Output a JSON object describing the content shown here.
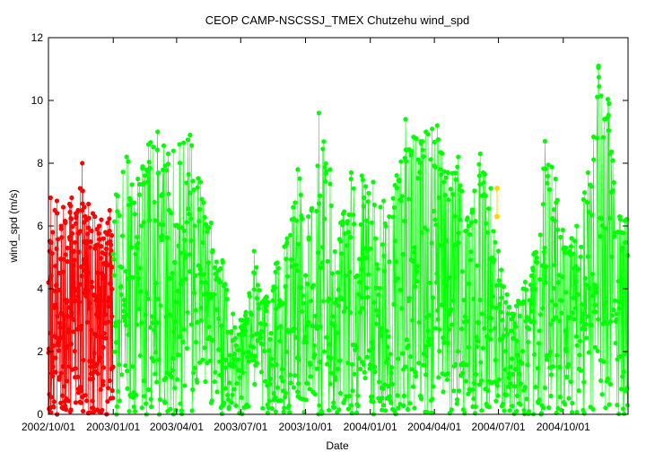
{
  "chart_data": {
    "type": "scatter",
    "title": "CEOP CAMP-NSCSSJ_TMEX Chutzehu  wind_spd",
    "xlabel": "Date",
    "ylabel": "wind_spd (m/s)",
    "ylim": [
      0,
      12
    ],
    "xlim": [
      "2002-10-01",
      "2005-01-01"
    ],
    "grid": false,
    "legend": "none",
    "y_ticks": [
      0,
      2,
      4,
      6,
      8,
      10,
      12
    ],
    "y_tick_labels": [
      "0",
      "2",
      "4",
      "6",
      "8",
      "10",
      "12"
    ],
    "x_ticks": [
      "2002-10-01",
      "2003-01-01",
      "2003-04-01",
      "2003-07-01",
      "2003-10-01",
      "2004-01-01",
      "2004-04-01",
      "2004-07-01",
      "2004-10-01"
    ],
    "x_tick_labels": [
      "2002/10/01",
      "2003/01/01",
      "2003/04/01",
      "2003/07/01",
      "2003/10/01",
      "2004/01/01",
      "2004/04/01",
      "2004/07/01",
      "2004/10/01"
    ],
    "series": [
      {
        "color": "#ff0000",
        "range": [
          "2002-10-01",
          "2003-01-01"
        ],
        "x": [
          "2002-10-01",
          "2002-10-04",
          "2002-10-07",
          "2002-10-10",
          "2002-10-13",
          "2002-10-16",
          "2002-10-19",
          "2002-10-22",
          "2002-10-25",
          "2002-10-28",
          "2002-10-31",
          "2002-11-03",
          "2002-11-06",
          "2002-11-09",
          "2002-11-12",
          "2002-11-15",
          "2002-11-18",
          "2002-11-21",
          "2002-11-24",
          "2002-11-27",
          "2002-11-30",
          "2002-12-03",
          "2002-12-06",
          "2002-12-09",
          "2002-12-12",
          "2002-12-15",
          "2002-12-18",
          "2002-12-21",
          "2002-12-24",
          "2002-12-27",
          "2002-12-30"
        ],
        "y": [
          4.2,
          6.9,
          5.8,
          6.5,
          6.8,
          4.5,
          6.0,
          6.6,
          6.1,
          5.3,
          6.7,
          6.9,
          5.2,
          6.4,
          6.5,
          7.2,
          8.0,
          6.6,
          6.2,
          6.7,
          5.5,
          6.4,
          6.3,
          5.9,
          6.0,
          6.2,
          5.6,
          5.8,
          6.1,
          6.5,
          5.7
        ]
      },
      {
        "color": "#00ff00",
        "range": [
          "2003-01-01",
          "2005-01-01"
        ],
        "x": [
          "2003-01-05",
          "2003-01-20",
          "2003-02-05",
          "2003-02-20",
          "2003-03-05",
          "2003-03-20",
          "2003-04-05",
          "2003-04-20",
          "2003-05-05",
          "2003-05-20",
          "2003-06-05",
          "2003-06-20",
          "2003-07-05",
          "2003-07-20",
          "2003-08-05",
          "2003-08-20",
          "2003-09-05",
          "2003-09-20",
          "2003-10-05",
          "2003-10-20",
          "2003-11-05",
          "2003-11-20",
          "2003-12-05",
          "2003-12-20",
          "2004-01-05",
          "2004-01-20",
          "2004-02-05",
          "2004-02-20",
          "2004-03-05",
          "2004-03-20",
          "2004-04-05",
          "2004-04-20",
          "2004-05-05",
          "2004-05-20",
          "2004-06-05",
          "2004-06-20",
          "2004-07-05",
          "2004-07-20",
          "2004-08-05",
          "2004-08-20",
          "2004-09-05",
          "2004-09-20",
          "2004-10-05",
          "2004-10-20",
          "2004-11-05",
          "2004-11-20",
          "2004-12-05",
          "2004-12-20"
        ],
        "y": [
          7.0,
          8.2,
          7.5,
          8.6,
          9.0,
          8.3,
          8.6,
          8.9,
          7.4,
          6.1,
          4.9,
          3.2,
          3.0,
          5.2,
          3.7,
          4.8,
          5.6,
          7.8,
          6.3,
          9.6,
          7.8,
          6.1,
          7.7,
          7.6,
          7.4,
          6.8,
          7.3,
          9.4,
          8.8,
          9.0,
          9.2,
          7.7,
          8.2,
          6.0,
          8.3,
          7.2,
          4.6,
          3.2,
          4.0,
          5.1,
          8.7,
          7.5,
          5.3,
          6.0,
          7.7,
          11.1,
          9.9,
          6.3
        ]
      },
      {
        "color": "#ffd700",
        "range": [
          "2004-07-01",
          "2004-07-01"
        ],
        "x": [
          "2004-06-29",
          "2004-06-29"
        ],
        "y": [
          7.2,
          6.3
        ]
      }
    ]
  }
}
